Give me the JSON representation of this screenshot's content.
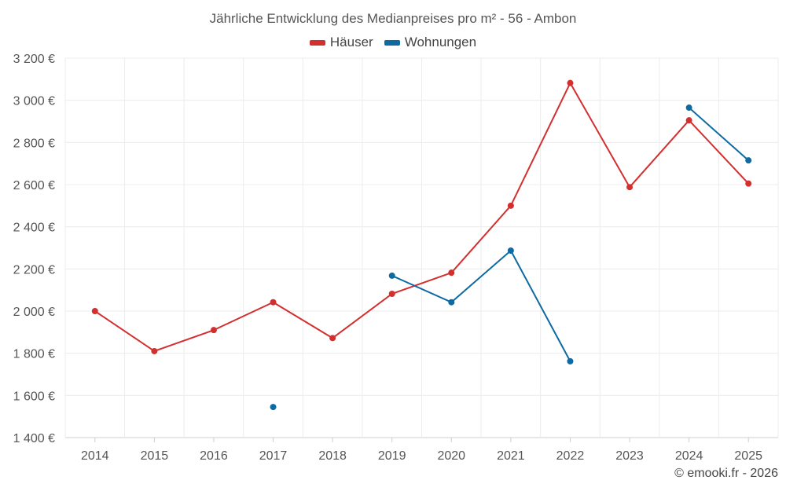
{
  "chart_data": {
    "type": "line",
    "title": "Jährliche Entwicklung des Medianpreises pro m² - 56 - Ambon",
    "xlabel": "",
    "ylabel": "",
    "categories": [
      "2014",
      "2015",
      "2016",
      "2017",
      "2018",
      "2019",
      "2020",
      "2021",
      "2022",
      "2023",
      "2024",
      "2025"
    ],
    "ylim": [
      1400,
      3200
    ],
    "y_ticks": [
      1400,
      1600,
      1800,
      2000,
      2200,
      2400,
      2600,
      2800,
      3000,
      3200
    ],
    "y_tick_labels": [
      "1 400 €",
      "1 600 €",
      "1 800 €",
      "2 000 €",
      "2 200 €",
      "2 400 €",
      "2 600 €",
      "2 800 €",
      "3 000 €",
      "3 200 €"
    ],
    "grid": true,
    "legend_position": "top-center",
    "series": [
      {
        "name": "Häuser",
        "color": "#d32f2f",
        "values": [
          2000,
          1810,
          1910,
          2042,
          1872,
          2082,
          2182,
          2500,
          3082,
          2588,
          2905,
          2605
        ]
      },
      {
        "name": "Wohnungen",
        "color": "#0d6aa3",
        "values": [
          null,
          null,
          null,
          1545,
          null,
          2168,
          2042,
          2287,
          1762,
          null,
          2965,
          2715
        ]
      }
    ]
  },
  "credit": "© emooki.fr - 2026"
}
